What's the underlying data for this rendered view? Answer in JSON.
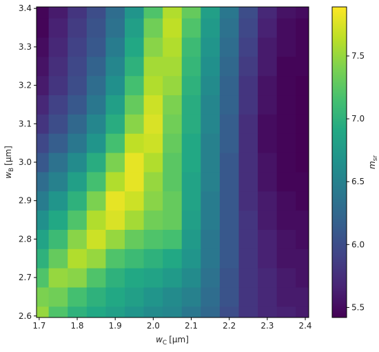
{
  "chart_data": {
    "type": "heatmap",
    "colormap": "viridis",
    "x": [
      1.7,
      1.75,
      1.8,
      1.85,
      1.9,
      1.95,
      2.0,
      2.05,
      2.1,
      2.15,
      2.2,
      2.25,
      2.3,
      2.35,
      2.4
    ],
    "y": [
      2.6,
      2.65,
      2.7,
      2.75,
      2.8,
      2.85,
      2.9,
      2.95,
      3.0,
      3.05,
      3.1,
      3.15,
      3.2,
      3.25,
      3.3,
      3.35,
      3.4
    ],
    "z": [
      [
        7.5,
        7.2,
        7.0,
        6.9,
        6.8,
        6.7,
        6.6,
        6.55,
        6.4,
        6.25,
        6.0,
        5.8,
        5.7,
        5.65,
        5.6
      ],
      [
        7.4,
        7.35,
        7.15,
        7.0,
        6.9,
        6.8,
        6.7,
        6.6,
        6.5,
        6.3,
        6.05,
        5.8,
        5.7,
        5.6,
        5.6
      ],
      [
        7.2,
        7.5,
        7.45,
        7.2,
        7.0,
        6.9,
        6.85,
        6.75,
        6.6,
        6.35,
        6.05,
        5.8,
        5.7,
        5.6,
        5.55
      ],
      [
        7.0,
        7.3,
        7.6,
        7.5,
        7.2,
        7.1,
        7.0,
        6.9,
        6.7,
        6.4,
        6.1,
        5.8,
        5.65,
        5.55,
        5.55
      ],
      [
        6.85,
        7.1,
        7.45,
        7.7,
        7.5,
        7.3,
        7.2,
        7.15,
        6.75,
        6.4,
        6.1,
        5.8,
        5.65,
        5.55,
        5.5
      ],
      [
        6.65,
        6.9,
        7.2,
        7.6,
        7.75,
        7.55,
        7.35,
        7.3,
        6.8,
        6.45,
        6.1,
        5.8,
        5.6,
        5.5,
        5.5
      ],
      [
        6.45,
        6.7,
        7.0,
        7.4,
        7.8,
        7.7,
        7.45,
        7.3,
        6.85,
        6.45,
        6.1,
        5.75,
        5.6,
        5.5,
        5.45
      ],
      [
        6.3,
        6.5,
        6.8,
        7.15,
        7.6,
        7.8,
        7.5,
        7.25,
        6.85,
        6.5,
        6.1,
        5.75,
        5.55,
        5.45,
        5.45
      ],
      [
        6.1,
        6.35,
        6.6,
        6.95,
        7.4,
        7.8,
        7.6,
        7.25,
        6.9,
        6.5,
        6.1,
        5.75,
        5.55,
        5.45,
        5.4
      ],
      [
        5.95,
        6.15,
        6.4,
        6.7,
        7.15,
        7.65,
        7.7,
        7.3,
        6.9,
        6.5,
        6.15,
        5.75,
        5.5,
        5.45,
        5.4
      ],
      [
        5.8,
        6.0,
        6.25,
        6.55,
        6.95,
        7.45,
        7.75,
        7.35,
        6.95,
        6.55,
        6.15,
        5.75,
        5.5,
        5.45,
        5.4
      ],
      [
        5.7,
        5.9,
        6.1,
        6.4,
        6.8,
        7.3,
        7.7,
        7.4,
        6.95,
        6.55,
        6.2,
        5.8,
        5.55,
        5.45,
        5.4
      ],
      [
        5.6,
        5.8,
        6.0,
        6.3,
        6.65,
        7.15,
        7.6,
        7.5,
        7.0,
        6.6,
        6.2,
        5.8,
        5.55,
        5.45,
        5.4
      ],
      [
        5.55,
        5.75,
        5.95,
        6.2,
        6.55,
        7.0,
        7.55,
        7.55,
        7.05,
        6.65,
        6.25,
        5.85,
        5.6,
        5.45,
        5.45
      ],
      [
        5.5,
        5.7,
        5.9,
        6.1,
        6.45,
        6.9,
        7.45,
        7.6,
        7.1,
        6.7,
        6.3,
        5.9,
        5.6,
        5.5,
        5.45
      ],
      [
        5.45,
        5.65,
        5.85,
        6.05,
        6.35,
        6.8,
        7.35,
        7.65,
        7.2,
        6.75,
        6.35,
        5.95,
        5.65,
        5.5,
        5.45
      ],
      [
        5.45,
        5.6,
        5.8,
        6.0,
        6.3,
        6.7,
        7.2,
        7.6,
        7.3,
        6.8,
        6.4,
        6.0,
        5.7,
        5.55,
        5.5
      ]
    ],
    "xlim": [
      1.693,
      2.409
    ],
    "ylim": [
      2.596,
      3.404
    ],
    "clim": [
      5.42,
      7.89
    ],
    "xticks": [
      1.7,
      1.8,
      1.9,
      {
        "value": 2,
        "label": "2.0"
      },
      2.1,
      2.2,
      2.3,
      2.4
    ],
    "yticks": [
      2.6,
      2.7,
      2.8,
      2.9,
      {
        "value": 3,
        "label": "3.0"
      },
      3.1,
      3.2,
      3.3,
      3.4
    ],
    "cticks": [
      5.5,
      {
        "value": 6,
        "label": "6.0"
      },
      6.5,
      {
        "value": 7,
        "label": "7.0"
      },
      7.5
    ],
    "xlabel": {
      "symbol": "w",
      "sub": "C",
      "unit": "[µm]"
    },
    "ylabel": {
      "symbol": "w",
      "sub": "B",
      "unit": "[µm]"
    },
    "clabel": {
      "symbol": "m",
      "sub": "sr"
    }
  }
}
